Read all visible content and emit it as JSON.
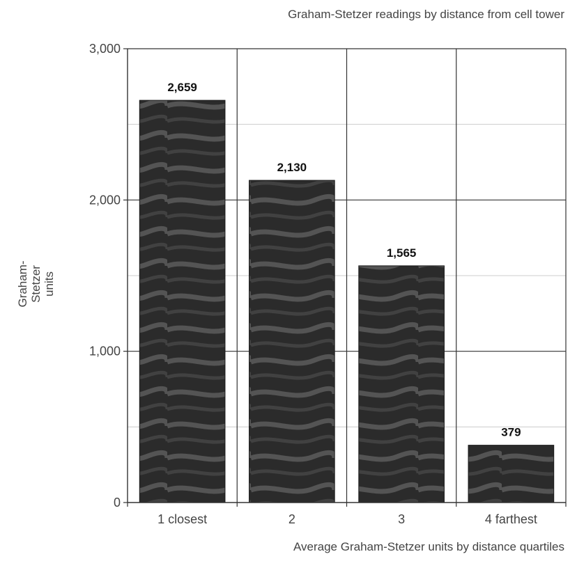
{
  "chart_data": {
    "type": "bar",
    "title": "Graham-Stetzer readings by distance from cell tower",
    "xlabel": "Average Graham-Stetzer units by distance quartiles",
    "ylabel_lines": [
      "Graham-",
      "Stetzer",
      "units"
    ],
    "categories": [
      "1 closest",
      "2",
      "3",
      "4 farthest"
    ],
    "values": [
      2659,
      2130,
      1565,
      379
    ],
    "value_labels": [
      "2,659",
      "2,130",
      "1,565",
      "379"
    ],
    "ylim": [
      0,
      3000
    ],
    "yticks": [
      0,
      1000,
      2000,
      3000
    ],
    "ytick_labels": [
      "0",
      "1,000",
      "2,000",
      "3,000"
    ],
    "minor_gridlines": [
      500,
      1500,
      2500
    ],
    "grid": true,
    "legend": "none",
    "bar_color": "#2a2a2a",
    "bar_highlight_color": "#5a5a5a",
    "gridline_color": "#333333",
    "minor_gridline_color": "#cccccc"
  }
}
